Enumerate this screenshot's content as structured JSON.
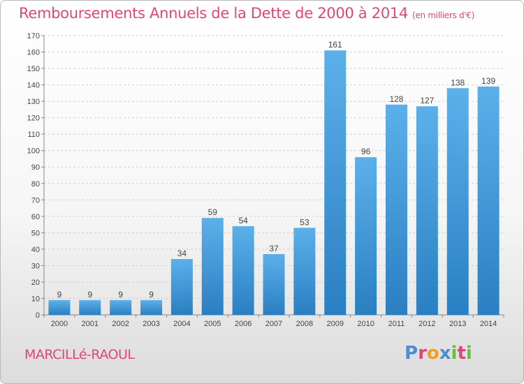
{
  "chart_data": {
    "type": "bar",
    "title": "Remboursements Annuels de la Dette de 2000 à 2014",
    "subtitle": "(en milliers d'€)",
    "categories": [
      "2000",
      "2001",
      "2002",
      "2003",
      "2004",
      "2005",
      "2006",
      "2007",
      "2008",
      "2009",
      "2010",
      "2011",
      "2012",
      "2013",
      "2014"
    ],
    "values": [
      9,
      9,
      9,
      9,
      34,
      59,
      54,
      37,
      53,
      161,
      96,
      128,
      127,
      138,
      139
    ],
    "ylim": [
      0,
      170
    ],
    "yticks": [
      0,
      10,
      20,
      30,
      40,
      50,
      60,
      70,
      80,
      90,
      100,
      110,
      120,
      130,
      140,
      150,
      160,
      170
    ],
    "grid": true,
    "bar_color": "#3d96d6",
    "xlabel": "",
    "ylabel": ""
  },
  "footer": {
    "commune": "MARCILLé-RAOUL",
    "logo_text": "Proxiti"
  },
  "colors": {
    "title": "#e0457b",
    "logo": [
      "#4a8fd0",
      "#e0457b",
      "#f0a020",
      "#4a8fd0",
      "#6abf3a",
      "#e0457b",
      "#6abf3a"
    ]
  }
}
